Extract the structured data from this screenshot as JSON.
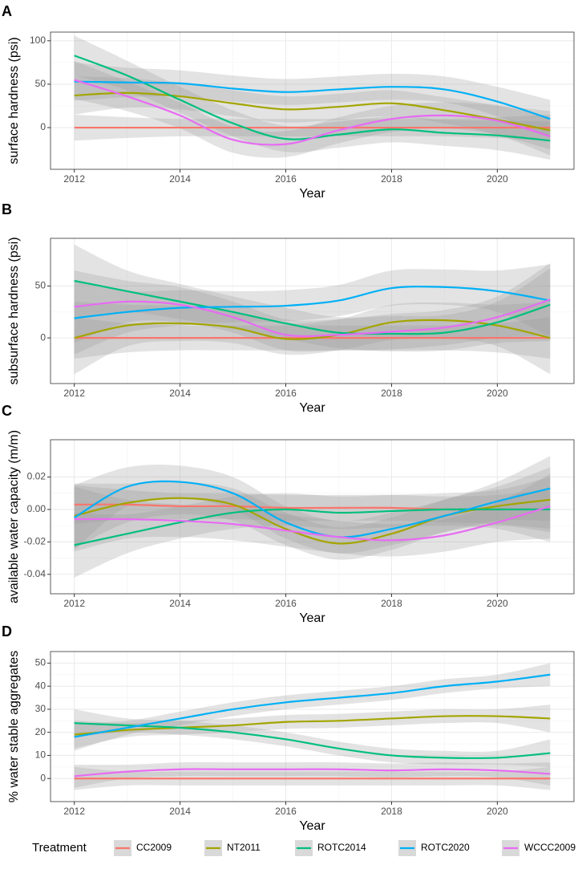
{
  "chart_data": [
    {
      "type": "line",
      "panel_label": "A",
      "x_label": "Year",
      "y_label": "surface hardness (psi)",
      "x": [
        2012,
        2013,
        2014,
        2015,
        2016,
        2017,
        2018,
        2019,
        2020,
        2021
      ],
      "xlim": [
        2011.55,
        2021.45
      ],
      "xticks": [
        2012,
        2014,
        2016,
        2018,
        2020
      ],
      "ylim": [
        -48,
        110
      ],
      "yticks": [
        0,
        50,
        100
      ],
      "grid": true,
      "series": [
        {
          "name": "CC2009",
          "color": "#F8766D",
          "values": [
            0,
            0,
            0,
            0,
            0,
            0,
            0,
            0,
            0,
            0
          ],
          "ci": [
            15,
            12,
            10,
            10,
            10,
            10,
            10,
            10,
            12,
            15
          ]
        },
        {
          "name": "NT2011",
          "color": "#A3A500",
          "values": [
            37,
            40,
            36,
            28,
            21,
            24,
            28,
            20,
            9,
            -3
          ],
          "ci": [
            22,
            17,
            15,
            15,
            15,
            15,
            15,
            15,
            17,
            22
          ]
        },
        {
          "name": "ROTC2014",
          "color": "#00BF7D",
          "values": [
            83,
            60,
            32,
            5,
            -13,
            -8,
            -2,
            -6,
            -9,
            -15
          ],
          "ci": [
            23,
            17,
            15,
            15,
            15,
            15,
            15,
            15,
            17,
            22
          ]
        },
        {
          "name": "ROTC2020",
          "color": "#00B0F6",
          "values": [
            53,
            52,
            51,
            45,
            41,
            44,
            47,
            44,
            30,
            10
          ],
          "ci": [
            22,
            17,
            15,
            15,
            15,
            15,
            15,
            15,
            17,
            22
          ]
        },
        {
          "name": "WCCC2009",
          "color": "#E76BF3",
          "values": [
            55,
            36,
            14,
            -14,
            -19,
            -3,
            10,
            14,
            8,
            -10
          ],
          "ci": [
            22,
            17,
            15,
            15,
            15,
            15,
            15,
            15,
            17,
            22
          ]
        }
      ]
    },
    {
      "type": "line",
      "panel_label": "B",
      "x_label": "Year",
      "y_label": "subsurface hardness (psi)",
      "x": [
        2012,
        2013,
        2014,
        2015,
        2016,
        2017,
        2018,
        2019,
        2020,
        2021
      ],
      "xlim": [
        2011.55,
        2021.45
      ],
      "xticks": [
        2012,
        2014,
        2016,
        2018,
        2020
      ],
      "ylim": [
        -44,
        96
      ],
      "yticks": [
        0,
        50
      ],
      "grid": true,
      "series": [
        {
          "name": "CC2009",
          "color": "#F8766D",
          "values": [
            0,
            0,
            0,
            0,
            0,
            0,
            0,
            0,
            0,
            0
          ],
          "ci": [
            20,
            14,
            12,
            12,
            12,
            12,
            12,
            12,
            14,
            20
          ]
        },
        {
          "name": "NT2011",
          "color": "#A3A500",
          "values": [
            0,
            12,
            14,
            10,
            -1,
            3,
            15,
            17,
            12,
            0
          ],
          "ci": [
            35,
            20,
            17,
            15,
            15,
            15,
            17,
            17,
            20,
            35
          ]
        },
        {
          "name": "ROTC2014",
          "color": "#00BF7D",
          "values": [
            55,
            45,
            35,
            25,
            14,
            5,
            4,
            5,
            15,
            32
          ],
          "ci": [
            35,
            20,
            17,
            15,
            15,
            15,
            17,
            17,
            20,
            35
          ]
        },
        {
          "name": "ROTC2020",
          "color": "#00B0F6",
          "values": [
            19,
            25,
            29,
            30,
            31,
            36,
            48,
            49,
            45,
            36
          ],
          "ci": [
            35,
            20,
            17,
            15,
            15,
            15,
            17,
            17,
            20,
            35
          ]
        },
        {
          "name": "WCCC2009",
          "color": "#E76BF3",
          "values": [
            30,
            35,
            32,
            20,
            3,
            3,
            6,
            10,
            20,
            37
          ],
          "ci": [
            35,
            20,
            17,
            15,
            15,
            15,
            17,
            17,
            20,
            35
          ]
        }
      ]
    },
    {
      "type": "line",
      "panel_label": "C",
      "x_label": "Year",
      "y_label": "available water capacity (m/m)",
      "x": [
        2012,
        2013,
        2014,
        2015,
        2016,
        2017,
        2018,
        2019,
        2020,
        2021
      ],
      "xlim": [
        2011.55,
        2021.45
      ],
      "xticks": [
        2012,
        2014,
        2016,
        2018,
        2020
      ],
      "ylim": [
        -0.052,
        0.043
      ],
      "yticks": [
        -0.04,
        -0.02,
        {
          "value": 0,
          "label": "0.00"
        },
        0.02
      ],
      "grid": true,
      "series": [
        {
          "name": "CC2009",
          "color": "#F8766D",
          "values": [
            0.003,
            0.003,
            0.002,
            0.002,
            0.001,
            0.001,
            0.001,
            0,
            0,
            0
          ],
          "ci": [
            0.012,
            0.009,
            0.008,
            0.008,
            0.008,
            0.008,
            0.008,
            0.008,
            0.009,
            0.012
          ]
        },
        {
          "name": "NT2011",
          "color": "#A3A500",
          "values": [
            -0.004,
            0.004,
            0.007,
            0.003,
            -0.012,
            -0.021,
            -0.015,
            -0.004,
            0.002,
            0.006
          ],
          "ci": [
            0.02,
            0.012,
            0.01,
            0.01,
            0.01,
            0.01,
            0.01,
            0.01,
            0.012,
            0.02
          ]
        },
        {
          "name": "ROTC2014",
          "color": "#00BF7D",
          "values": [
            -0.022,
            -0.015,
            -0.008,
            -0.002,
            0,
            -0.002,
            -0.001,
            0,
            0,
            0
          ],
          "ci": [
            0.02,
            0.012,
            0.01,
            0.01,
            0.01,
            0.01,
            0.01,
            0.01,
            0.012,
            0.02
          ]
        },
        {
          "name": "ROTC2020",
          "color": "#00B0F6",
          "values": [
            -0.005,
            0.014,
            0.017,
            0.01,
            -0.008,
            -0.017,
            -0.012,
            -0.004,
            0.005,
            0.013
          ],
          "ci": [
            0.02,
            0.012,
            0.01,
            0.01,
            0.01,
            0.01,
            0.01,
            0.01,
            0.012,
            0.02
          ]
        },
        {
          "name": "WCCC2009",
          "color": "#E76BF3",
          "values": [
            -0.006,
            -0.006,
            -0.007,
            -0.009,
            -0.013,
            -0.017,
            -0.019,
            -0.016,
            -0.008,
            0.002
          ],
          "ci": [
            0.02,
            0.012,
            0.01,
            0.01,
            0.01,
            0.01,
            0.01,
            0.01,
            0.012,
            0.02
          ]
        }
      ]
    },
    {
      "type": "line",
      "panel_label": "D",
      "x_label": "Year",
      "y_label": "% water stable aggregates",
      "x": [
        2012,
        2013,
        2014,
        2015,
        2016,
        2017,
        2018,
        2019,
        2020,
        2021
      ],
      "xlim": [
        2011.55,
        2021.45
      ],
      "xticks": [
        2012,
        2014,
        2016,
        2018,
        2020
      ],
      "ylim": [
        -10,
        55
      ],
      "yticks": [
        0,
        10,
        20,
        30,
        40,
        50
      ],
      "grid": true,
      "series": [
        {
          "name": "CC2009",
          "color": "#F8766D",
          "values": [
            0,
            0,
            0,
            0,
            0,
            0,
            0,
            0,
            0,
            0
          ],
          "ci": [
            5,
            3,
            3,
            3,
            3,
            3,
            3,
            3,
            3,
            5
          ]
        },
        {
          "name": "NT2011",
          "color": "#A3A500",
          "values": [
            19,
            21,
            22,
            23,
            24.5,
            25,
            26,
            27,
            27,
            26
          ],
          "ci": [
            6,
            3,
            3,
            3,
            3,
            3,
            3,
            3,
            3,
            6
          ]
        },
        {
          "name": "ROTC2014",
          "color": "#00BF7D",
          "values": [
            24,
            23,
            22,
            20,
            17,
            13,
            10,
            9,
            9,
            11
          ],
          "ci": [
            6,
            3,
            3,
            3,
            3,
            3,
            3,
            3,
            3,
            6
          ]
        },
        {
          "name": "ROTC2020",
          "color": "#00B0F6",
          "values": [
            18,
            22,
            26,
            30,
            33,
            35,
            37,
            40,
            42,
            45
          ],
          "ci": [
            6,
            3,
            3,
            3,
            3,
            3,
            3,
            3,
            3,
            5
          ]
        },
        {
          "name": "WCCC2009",
          "color": "#E76BF3",
          "values": [
            1,
            3,
            4,
            4,
            4,
            4,
            3.5,
            4,
            3.5,
            2
          ],
          "ci": [
            5,
            3,
            3,
            3,
            3,
            3,
            3,
            3,
            3,
            5
          ]
        }
      ]
    }
  ],
  "legend": {
    "title": "Treatment"
  }
}
